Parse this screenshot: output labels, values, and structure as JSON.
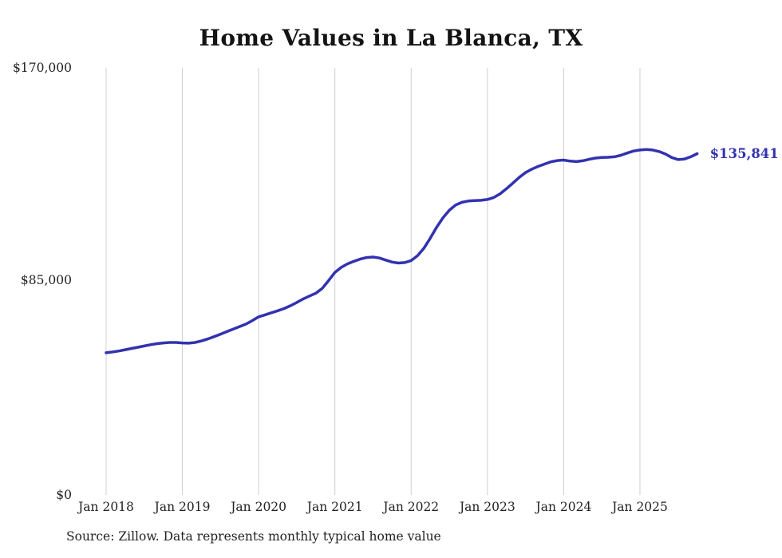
{
  "chart_data": {
    "type": "line",
    "title": "Home Values in La Blanca, TX",
    "source_note": "Source: Zillow. Data represents monthly typical home value",
    "end_label": "$135,841",
    "latest_value": 135841,
    "line_color": "#3232b0",
    "grid_color": "#cfcfcf",
    "text_color": "#222222",
    "ylim": [
      0,
      170000
    ],
    "y_ticks": [
      {
        "value": 0,
        "label": "$0"
      },
      {
        "value": 85000,
        "label": "$85,000"
      },
      {
        "value": 170000,
        "label": "$170,000"
      }
    ],
    "x_tick_labels": [
      "Jan 2018",
      "Jan 2019",
      "Jan 2020",
      "Jan 2021",
      "Jan 2022",
      "Jan 2023",
      "Jan 2024",
      "Jan 2025"
    ],
    "x_frequency": "monthly",
    "x_start": "Jan 2018",
    "grid": "vertical-only",
    "legend": "none",
    "series": [
      {
        "name": "Typical home value",
        "values": [
          56600,
          56900,
          57300,
          57800,
          58300,
          58800,
          59300,
          59800,
          60200,
          60500,
          60700,
          60700,
          60500,
          60400,
          60700,
          61300,
          62100,
          63000,
          64000,
          65000,
          66000,
          67000,
          68000,
          69400,
          70900,
          71700,
          72500,
          73300,
          74200,
          75300,
          76600,
          78000,
          79200,
          80300,
          82200,
          85300,
          88600,
          90600,
          92000,
          93000,
          93900,
          94500,
          94700,
          94300,
          93500,
          92700,
          92300,
          92500,
          93300,
          95200,
          98200,
          102200,
          106500,
          110300,
          113300,
          115400,
          116500,
          117000,
          117200,
          117300,
          117600,
          118400,
          119900,
          121900,
          124100,
          126400,
          128300,
          129700,
          130800,
          131700,
          132600,
          133100,
          133300,
          132900,
          132700,
          133000,
          133600,
          134100,
          134300,
          134400,
          134600,
          135200,
          136100,
          136900,
          137300,
          137500,
          137300,
          136700,
          135700,
          134300,
          133500,
          133700,
          134600,
          135841
        ]
      }
    ]
  }
}
